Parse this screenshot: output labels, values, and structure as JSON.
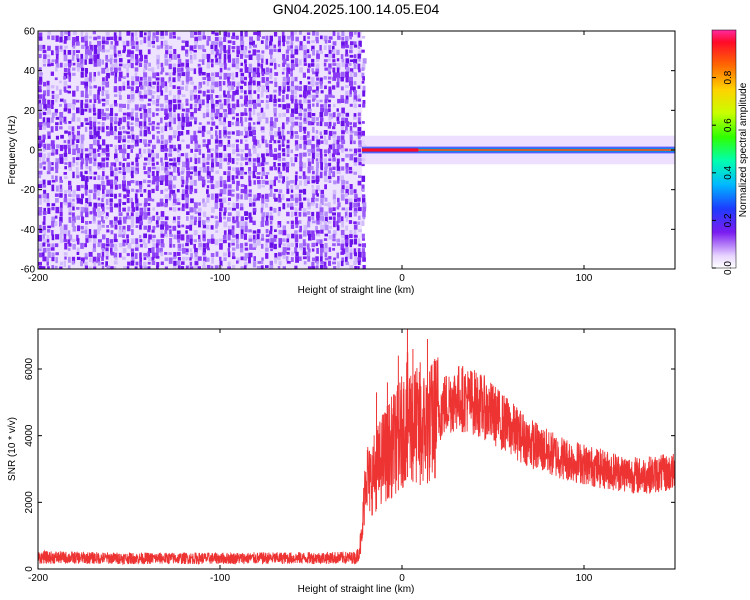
{
  "title": "GN04.2025.100.14.05.E04",
  "chart_data": [
    {
      "type": "heatmap",
      "xlabel": "Height of straight line (km)",
      "ylabel": "Frequency (Hz)",
      "xlim": [
        -200,
        150
      ],
      "ylim": [
        -60,
        60
      ],
      "xticks": [
        -200,
        -100,
        0,
        100
      ],
      "yticks": [
        -60,
        -40,
        -20,
        0,
        20,
        40,
        60
      ],
      "noise_region_x": [
        -200,
        -22
      ],
      "signal_band": {
        "x_start": -22,
        "x_end": 150,
        "center_freq": 0,
        "bandwidth": 4
      },
      "colorbar": {
        "label": "Normalized spectral amplitude",
        "range": [
          0.0,
          1.0
        ],
        "ticks": [
          0.0,
          0.2,
          0.4,
          0.6,
          0.8
        ],
        "tick_labels": [
          "0.0",
          "0.2",
          "0.4",
          "0.6",
          "0.8"
        ],
        "colormap": "rainbow"
      }
    },
    {
      "type": "line",
      "xlabel": "Height of straight line (km)",
      "ylabel": "SNR (10 * v/v)",
      "xlim": [
        -200,
        150
      ],
      "ylim": [
        0,
        7200
      ],
      "xticks": [
        -200,
        -100,
        0,
        100
      ],
      "yticks": [
        0,
        2000,
        4000,
        6000
      ],
      "line_color": "#ee3333",
      "x": [
        -200,
        -150,
        -100,
        -50,
        -25,
        -22,
        -20,
        -18,
        -15,
        -10,
        -5,
        0,
        3,
        5,
        10,
        15,
        20,
        25,
        30,
        35,
        40,
        45,
        50,
        60,
        70,
        80,
        90,
        100,
        110,
        120,
        130,
        140,
        150
      ],
      "y": [
        350,
        320,
        320,
        330,
        340,
        900,
        3000,
        2600,
        2900,
        3400,
        3700,
        4100,
        4600,
        4400,
        4200,
        4300,
        4700,
        5000,
        5150,
        5100,
        5000,
        4850,
        4650,
        4200,
        3800,
        3500,
        3300,
        3150,
        3000,
        2900,
        2800,
        2850,
        2900
      ]
    }
  ]
}
